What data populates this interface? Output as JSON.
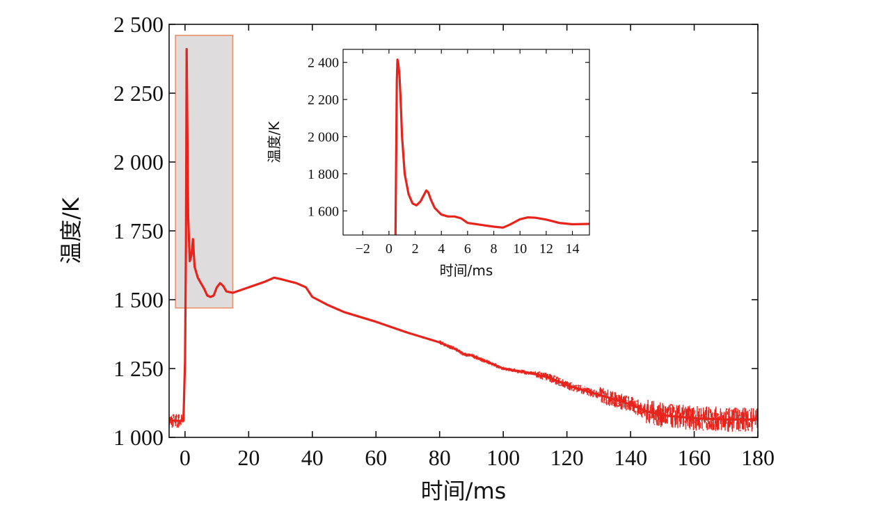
{
  "chart_data": [
    {
      "type": "line",
      "xlabel": "时间/ms",
      "ylabel": "温度/K",
      "xlim": [
        -5,
        180
      ],
      "ylim": [
        1000,
        2500
      ],
      "xticks": [
        0,
        20,
        40,
        60,
        80,
        100,
        120,
        140,
        160,
        180
      ],
      "yticks": [
        1000,
        1250,
        1500,
        1750,
        2000,
        2250,
        2500
      ],
      "xtick_labels": [
        "0",
        "20",
        "40",
        "60",
        "80",
        "100",
        "120",
        "140",
        "160",
        "180"
      ],
      "ytick_labels": [
        "1 000",
        "1 250",
        "1 500",
        "1 750",
        "2 000",
        "2 250",
        "2 500"
      ],
      "grid": false,
      "line_color": "#e8231c",
      "highlight_box": {
        "x_range": [
          -3,
          15
        ],
        "y_range": [
          1470,
          2460
        ],
        "fill": "#dedcdc",
        "stroke": "#e8926a"
      },
      "x": [
        -5,
        -0.5,
        0,
        0.3,
        0.5,
        0.7,
        1,
        1.5,
        2,
        2.5,
        3,
        4,
        5,
        6,
        7,
        8,
        9,
        10,
        11,
        12,
        13,
        15,
        20,
        25,
        28,
        30,
        35,
        38,
        40,
        45,
        50,
        60,
        70,
        80,
        85,
        88,
        90,
        100,
        110,
        115,
        120,
        130,
        140,
        145,
        150,
        160,
        170,
        180
      ],
      "y": [
        1060,
        1060,
        1280,
        1700,
        2410,
        2150,
        1800,
        1640,
        1660,
        1720,
        1620,
        1580,
        1560,
        1540,
        1515,
        1510,
        1515,
        1545,
        1560,
        1550,
        1530,
        1525,
        1545,
        1565,
        1580,
        1575,
        1560,
        1545,
        1510,
        1480,
        1455,
        1420,
        1380,
        1345,
        1320,
        1300,
        1298,
        1250,
        1230,
        1215,
        1190,
        1155,
        1120,
        1095,
        1080,
        1070,
        1065,
        1065
      ]
    },
    {
      "type": "line",
      "xlabel": "时间/ms",
      "ylabel": "温度/K",
      "xlim": [
        -3.5,
        15.3
      ],
      "ylim": [
        1470,
        2470
      ],
      "xticks": [
        -2,
        0,
        2,
        4,
        6,
        8,
        10,
        12,
        14
      ],
      "yticks": [
        1600,
        1800,
        2000,
        2200,
        2400
      ],
      "xtick_labels": [
        "−2",
        "0",
        "2",
        "4",
        "6",
        "8",
        "10",
        "12",
        "14"
      ],
      "ytick_labels": [
        "1 600",
        "1 800",
        "2 000",
        "2 200",
        "2 400"
      ],
      "grid": false,
      "line_color": "#e8231c",
      "x": [
        0.5,
        0.55,
        0.6,
        0.65,
        0.7,
        0.8,
        0.9,
        1.0,
        1.2,
        1.5,
        1.8,
        2.1,
        2.4,
        2.7,
        2.85,
        3.0,
        3.2,
        3.5,
        4.0,
        4.5,
        5.0,
        5.5,
        6.0,
        7.0,
        8.0,
        8.7,
        9.2,
        10.0,
        10.6,
        11.2,
        12.0,
        13.0,
        14.0,
        15.3
      ],
      "y": [
        1480,
        1900,
        2300,
        2415,
        2400,
        2330,
        2180,
        2000,
        1800,
        1690,
        1640,
        1630,
        1650,
        1690,
        1710,
        1700,
        1660,
        1615,
        1580,
        1570,
        1570,
        1560,
        1535,
        1525,
        1515,
        1510,
        1525,
        1555,
        1565,
        1563,
        1553,
        1535,
        1528,
        1530
      ]
    }
  ]
}
